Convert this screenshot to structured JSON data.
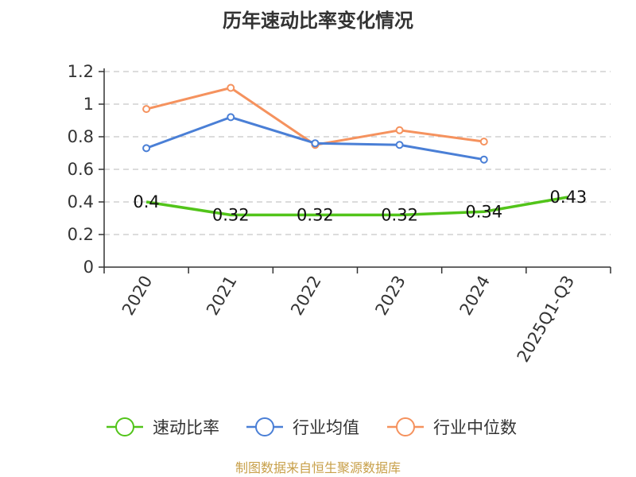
{
  "chart_data": {
    "type": "line",
    "title": "历年速动比率变化情况",
    "categories": [
      "2020",
      "2021",
      "2022",
      "2023",
      "2024",
      "2025Q1-Q3"
    ],
    "ylim": [
      0,
      1.2
    ],
    "yticks": [
      "0",
      "0.2",
      "0.4",
      "0.6",
      "0.8",
      "1",
      "1.2"
    ],
    "grid": true,
    "legend_position": "bottom",
    "series": [
      {
        "name": "速动比率",
        "color": "#52c41a",
        "values": [
          0.4,
          0.32,
          0.32,
          0.32,
          0.34,
          0.43
        ],
        "labels": [
          "0.4",
          "0.32",
          "0.32",
          "0.32",
          "0.34",
          "0.43"
        ]
      },
      {
        "name": "行业均值",
        "color": "#4a7fd6",
        "values": [
          0.73,
          0.92,
          0.76,
          0.75,
          0.66,
          null
        ]
      },
      {
        "name": "行业中位数",
        "color": "#f5925e",
        "values": [
          0.97,
          1.1,
          0.75,
          0.84,
          0.77,
          null
        ]
      }
    ],
    "source": "制图数据来自恒生聚源数据库"
  }
}
